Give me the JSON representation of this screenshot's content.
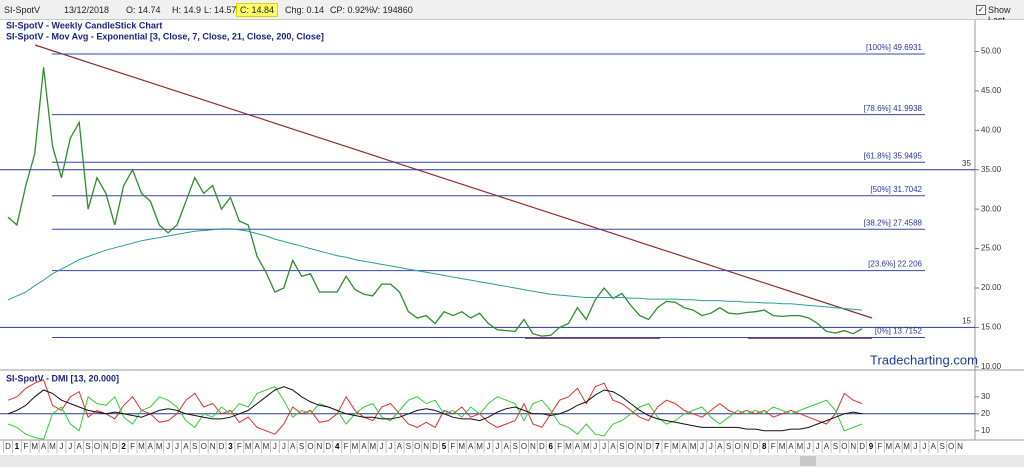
{
  "toolbar": {
    "symbol": "SI-SpotV",
    "date": "13/12/2018",
    "open": "O: 14.74",
    "high": "H: 14.9",
    "low": "L: 14.57",
    "close": "C: 14.84",
    "change": "Chg: 0.14",
    "change_percent": "CP: 0.92%",
    "volume": "V: 194860",
    "show_last": "Show Last"
  },
  "chart_data": [
    {
      "type": "line",
      "title": "SI-SpotV - Weekly CandleStick Chart",
      "subtitle": "SI-SpotV - Mov Avg - Exponential [3, Close, 7, Close, 21, Close, 200, Close]",
      "annotation": "Tradecharting.com",
      "ylim": [
        9.6,
        54
      ],
      "yticks": [
        {
          "value": 10,
          "label": "10.00"
        },
        {
          "value": 15,
          "label": "15.00"
        },
        {
          "value": 20,
          "label": "20.00"
        },
        {
          "value": 25,
          "label": "25.00"
        },
        {
          "value": 30,
          "label": "30.00"
        },
        {
          "value": 35,
          "label": "35.00"
        },
        {
          "value": 40,
          "label": "40.00"
        },
        {
          "value": 45,
          "label": "45.00"
        },
        {
          "value": 50,
          "label": "50.00"
        }
      ],
      "hlines": [
        35,
        15
      ],
      "fib_levels": [
        {
          "value": 49.6931,
          "label": "[100%] 49.6931"
        },
        {
          "value": 41.9938,
          "label": "[78.6%] 41.9938"
        },
        {
          "value": 35.9495,
          "label": "[61.8%] 35.9495"
        },
        {
          "value": 31.7042,
          "label": "[50%] 31.7042"
        },
        {
          "value": 27.4588,
          "label": "[38.2%] 27.4588"
        },
        {
          "value": 22.206,
          "label": "[23.6%] 22.206"
        },
        {
          "value": 13.7152,
          "label": "[0%] 13.7152"
        }
      ],
      "series": [
        {
          "name": "SI-SpotV",
          "color": "#2e8b2e",
          "values": [
            29,
            28,
            33,
            37,
            48,
            38,
            34,
            39,
            41,
            30,
            34,
            32,
            28,
            33,
            35,
            32,
            31,
            28,
            27,
            28,
            31,
            34,
            32,
            33,
            30,
            31.5,
            28.5,
            28,
            24,
            22,
            19.5,
            20,
            23.5,
            21.5,
            21.8,
            19.5,
            19.5,
            19.5,
            21.5,
            19.8,
            19.2,
            19,
            20.5,
            20.5,
            19.5,
            17,
            16.2,
            16.5,
            15.5,
            17,
            16.5,
            17,
            16.2,
            16.8,
            15.5,
            14.7,
            14.6,
            14.5,
            16,
            14.2,
            13.9,
            14,
            15,
            15.5,
            17.5,
            16,
            18.5,
            20,
            18.7,
            19.3,
            17.8,
            16.5,
            16,
            17.5,
            18.3,
            18.2,
            17.5,
            17.2,
            16.5,
            16.8,
            17.5,
            16.8,
            16.7,
            16.9,
            17,
            17.2,
            16.5,
            16.4,
            16.5,
            16.5,
            16.2,
            15.5,
            14.5,
            14.3,
            14.6,
            14.2,
            14.84,
            null,
            null,
            null,
            null,
            null,
            null,
            null,
            null,
            null,
            null,
            null
          ]
        },
        {
          "name": "200",
          "color": "#2a9d9a",
          "values": [
            18.5,
            19,
            19.5,
            20.3,
            21,
            21.8,
            22.4,
            23,
            23.6,
            24,
            24.4,
            24.8,
            25.1,
            25.4,
            25.7,
            26,
            26.2,
            26.4,
            26.6,
            26.8,
            27,
            27.2,
            27.3,
            27.4,
            27.5,
            27.5,
            27.4,
            27.2,
            26.9,
            26.6,
            26.2,
            25.9,
            25.6,
            25.3,
            25,
            24.7,
            24.4,
            24.1,
            23.9,
            23.6,
            23.4,
            23.2,
            23,
            22.8,
            22.6,
            22.4,
            22.2,
            22,
            21.8,
            21.6,
            21.4,
            21.2,
            21,
            20.8,
            20.6,
            20.4,
            20.2,
            20,
            19.8,
            19.6,
            19.4,
            19.2,
            19.1,
            19,
            18.9,
            18.8,
            18.8,
            18.8,
            18.8,
            18.8,
            18.7,
            18.7,
            18.6,
            18.6,
            18.6,
            18.6,
            18.5,
            18.5,
            18.4,
            18.4,
            18.4,
            18.3,
            18.3,
            18.2,
            18.2,
            18.1,
            18.1,
            18,
            18,
            17.9,
            17.8,
            17.7,
            17.6,
            17.5,
            17.4,
            17.3,
            17.2,
            null,
            null,
            null,
            null,
            null,
            null,
            null,
            null,
            null,
            null,
            null
          ]
        }
      ]
    },
    {
      "type": "line",
      "title": "SI-SpotV - DMI [13, 20.000]",
      "ylim": [
        4,
        44
      ],
      "yticks": [
        10,
        20,
        30
      ],
      "hlines": [
        20
      ],
      "categories": [
        "D",
        "1",
        "F",
        "M",
        "A",
        "M",
        "J",
        "J",
        "A",
        "S",
        "O",
        "N",
        "D",
        "2",
        "F",
        "M",
        "A",
        "M",
        "J",
        "J",
        "A",
        "S",
        "O",
        "N",
        "D",
        "3",
        "F",
        "M",
        "A",
        "M",
        "J",
        "J",
        "A",
        "S",
        "O",
        "N",
        "D",
        "4",
        "F",
        "M",
        "A",
        "M",
        "J",
        "J",
        "A",
        "S",
        "O",
        "N",
        "D",
        "5",
        "F",
        "M",
        "A",
        "M",
        "J",
        "J",
        "A",
        "S",
        "O",
        "N",
        "D",
        "6",
        "F",
        "M",
        "A",
        "M",
        "J",
        "J",
        "A",
        "S",
        "O",
        "N",
        "D",
        "7",
        "F",
        "M",
        "A",
        "M",
        "J",
        "J",
        "A",
        "S",
        "O",
        "N",
        "D",
        "8",
        "F",
        "M",
        "A",
        "M",
        "J",
        "J",
        "A",
        "S",
        "O",
        "N",
        "D",
        "9",
        "F",
        "M",
        "A",
        "M",
        "J",
        "J",
        "A",
        "S",
        "O",
        "N"
      ],
      "series": [
        {
          "name": "+DI",
          "color": "#e03030",
          "values": [
            28,
            30,
            35,
            38,
            40,
            25,
            22,
            30,
            33,
            18,
            22,
            20,
            17,
            25,
            30,
            22,
            20,
            15,
            16,
            20,
            28,
            32,
            24,
            26,
            20,
            22,
            15,
            18,
            12,
            10,
            8,
            14,
            24,
            20,
            22,
            15,
            16,
            20,
            30,
            22,
            18,
            16,
            24,
            26,
            20,
            14,
            12,
            15,
            12,
            22,
            20,
            24,
            18,
            20,
            15,
            12,
            14,
            16,
            26,
            14,
            12,
            20,
            28,
            30,
            35,
            26,
            36,
            38,
            28,
            26,
            22,
            18,
            16,
            24,
            28,
            26,
            22,
            20,
            18,
            22,
            26,
            22,
            20,
            22,
            20,
            22,
            18,
            20,
            22,
            20,
            18,
            16,
            14,
            20,
            32,
            28,
            26,
            null,
            null,
            null,
            null,
            null,
            null,
            null,
            null,
            null,
            null,
            null
          ]
        },
        {
          "name": "-DI",
          "color": "#33cc33",
          "values": [
            14,
            12,
            8,
            6,
            5,
            20,
            24,
            14,
            10,
            30,
            26,
            25,
            30,
            18,
            14,
            22,
            24,
            30,
            28,
            24,
            16,
            12,
            20,
            18,
            24,
            20,
            26,
            24,
            32,
            34,
            36,
            28,
            18,
            22,
            20,
            26,
            24,
            22,
            14,
            20,
            24,
            26,
            18,
            16,
            22,
            28,
            30,
            26,
            28,
            20,
            22,
            18,
            24,
            20,
            26,
            30,
            28,
            26,
            16,
            26,
            28,
            22,
            14,
            12,
            8,
            14,
            8,
            7,
            14,
            16,
            20,
            24,
            26,
            18,
            14,
            16,
            20,
            22,
            24,
            18,
            14,
            18,
            22,
            20,
            22,
            20,
            24,
            22,
            20,
            22,
            24,
            26,
            28,
            22,
            10,
            12,
            14,
            null,
            null,
            null,
            null,
            null,
            null,
            null,
            null,
            null,
            null,
            null
          ]
        },
        {
          "name": "ADX",
          "color": "#111111",
          "values": [
            20,
            22,
            25,
            30,
            34,
            32,
            28,
            26,
            24,
            22,
            21,
            20,
            21,
            20,
            19,
            18,
            20,
            22,
            23,
            22,
            20,
            19,
            18,
            17,
            17,
            18,
            20,
            22,
            26,
            30,
            34,
            36,
            34,
            30,
            27,
            25,
            24,
            22,
            20,
            19,
            18,
            18,
            17,
            17,
            18,
            20,
            22,
            23,
            22,
            20,
            18,
            17,
            17,
            16,
            18,
            21,
            23,
            24,
            22,
            20,
            20,
            19,
            20,
            22,
            25,
            27,
            31,
            34,
            33,
            30,
            26,
            22,
            19,
            17,
            16,
            15,
            14,
            13,
            12,
            12,
            12,
            12,
            12,
            11,
            11,
            10,
            10,
            10,
            11,
            11,
            12,
            14,
            16,
            18,
            20,
            21,
            20,
            null,
            null,
            null,
            null,
            null,
            null,
            null,
            null,
            null,
            null,
            null
          ]
        }
      ]
    }
  ]
}
